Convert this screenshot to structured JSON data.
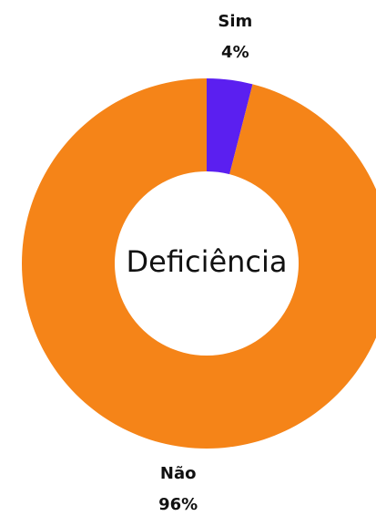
{
  "chart_data": {
    "type": "donut",
    "title": "Deficiência",
    "categories": [
      "Sim",
      "Não"
    ],
    "values": [
      4,
      96
    ],
    "value_labels": [
      "4%",
      "96%"
    ],
    "colors": [
      "#5b1ff0",
      "#f58418"
    ]
  }
}
